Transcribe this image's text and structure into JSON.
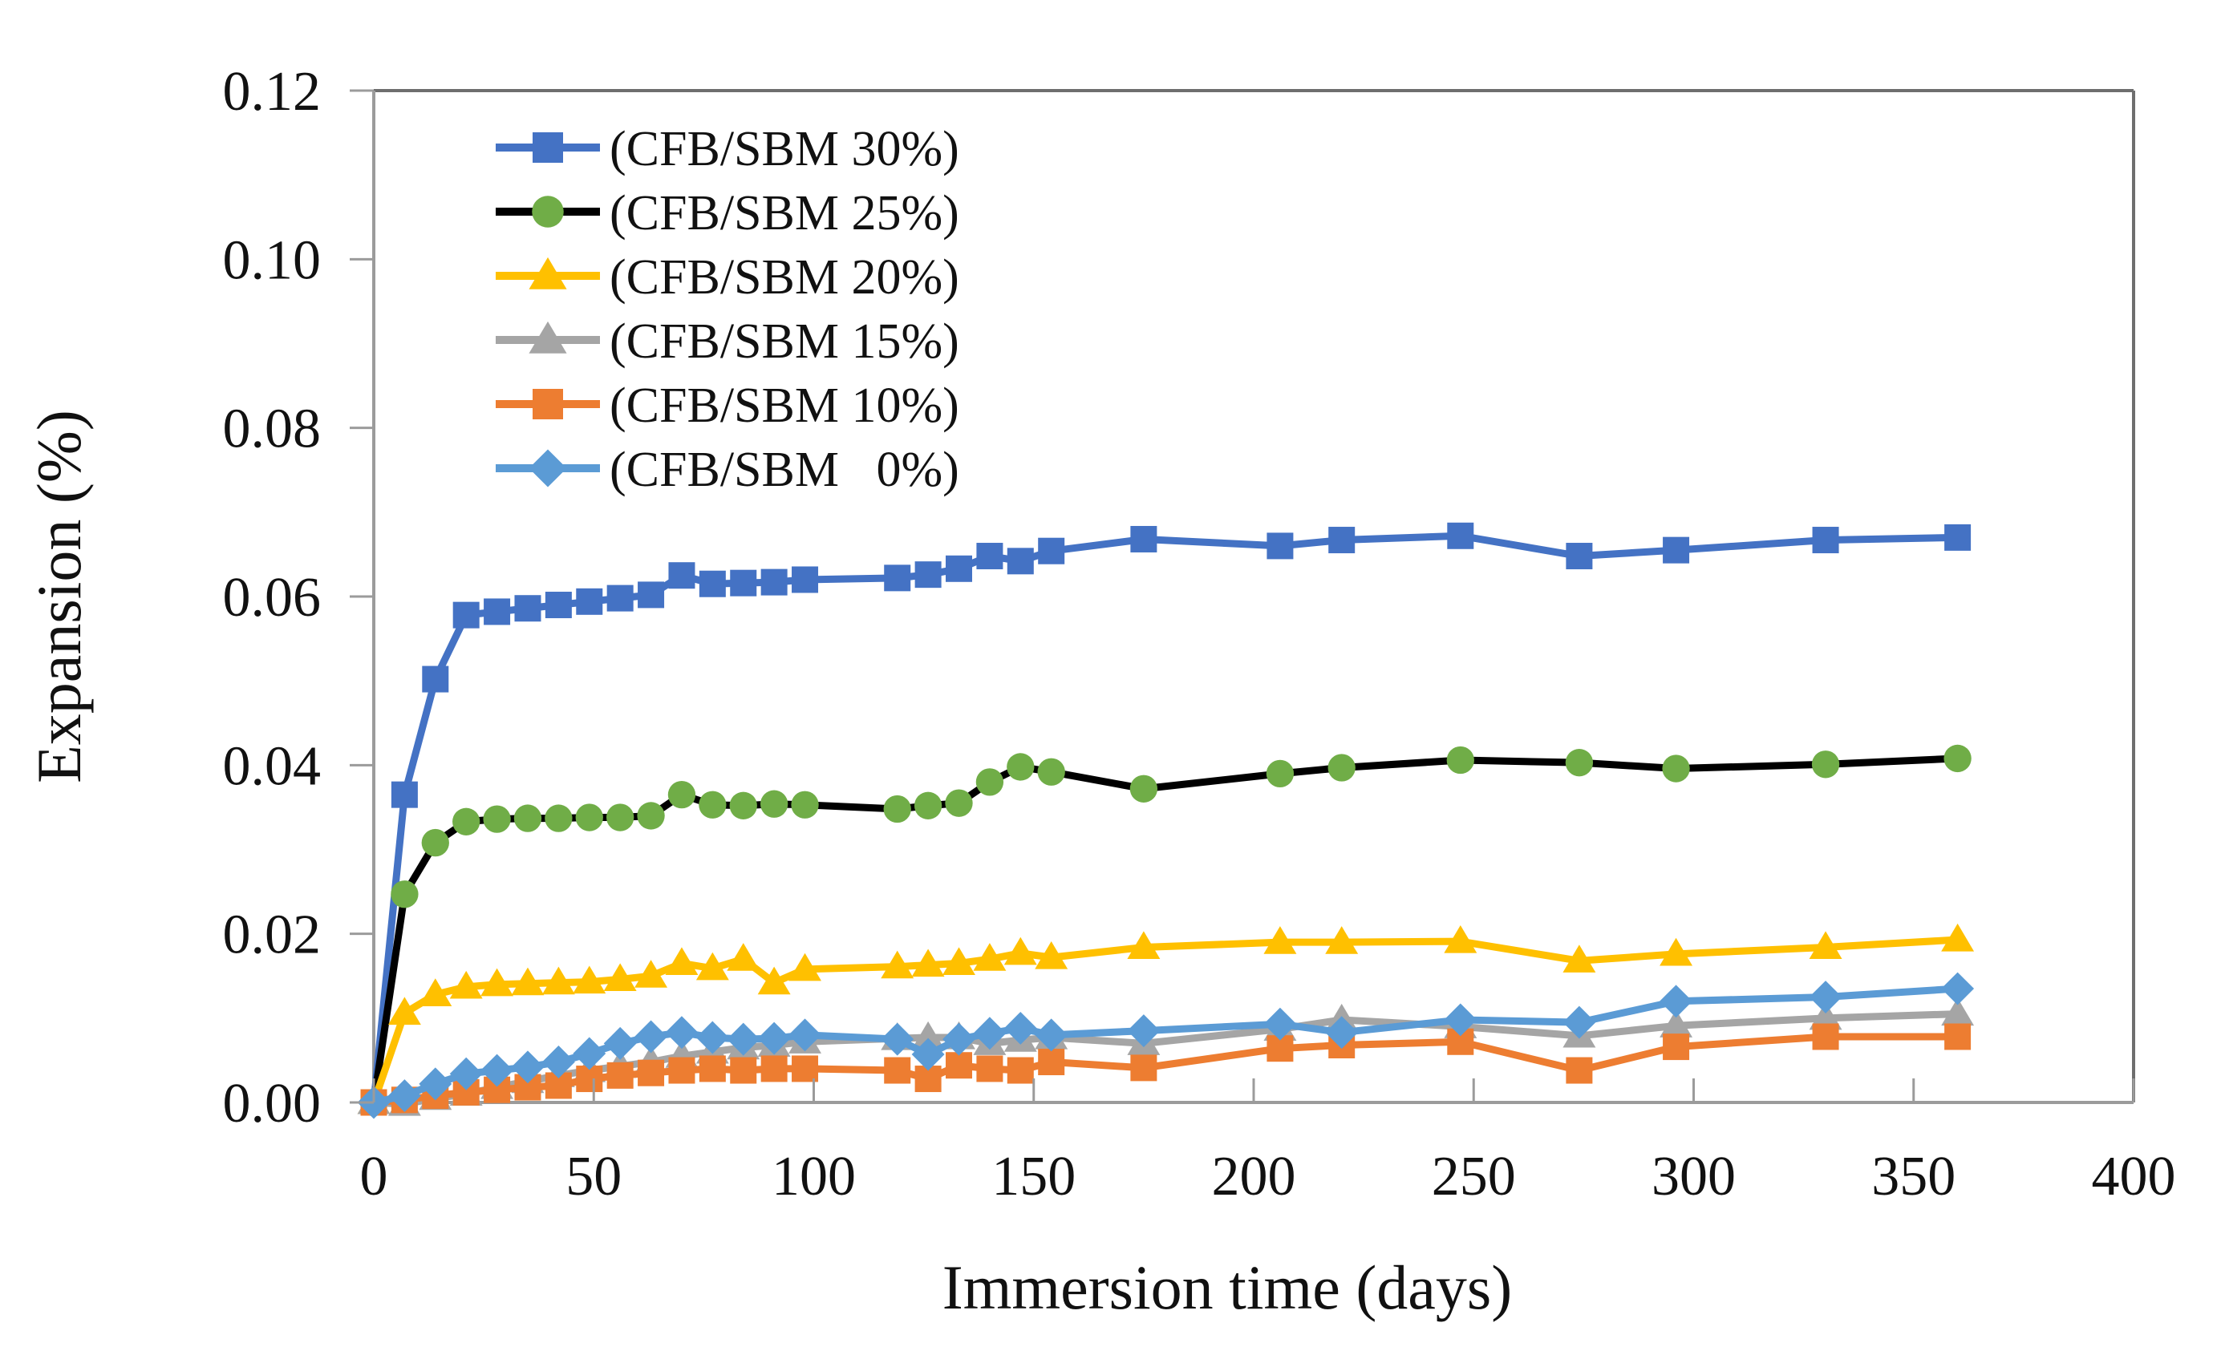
{
  "figure": {
    "background": "#ffffff",
    "frame_color_light": "#9b9b9b",
    "frame_color_dark": "#6e6e6e"
  },
  "chart_data": {
    "type": "line",
    "title": "",
    "xlabel": "Immersion time (days)",
    "ylabel": "Expansion  (%)",
    "xlim": [
      0,
      400
    ],
    "ylim": [
      0,
      0.12
    ],
    "x_ticks": [
      0,
      50,
      100,
      150,
      200,
      250,
      300,
      350,
      400
    ],
    "y_ticks": [
      {
        "value": 0.0,
        "label": "0.00"
      },
      {
        "value": 0.02,
        "label": "0.02"
      },
      {
        "value": 0.04,
        "label": "0.04"
      },
      {
        "value": 0.06,
        "label": "0.06"
      },
      {
        "value": 0.08,
        "label": "0.08"
      },
      {
        "value": 0.1,
        "label": "0.10"
      },
      {
        "value": 0.12,
        "label": "0.12"
      }
    ],
    "grid": false,
    "legend_position": "upper-left-inside",
    "x": [
      0,
      7,
      14,
      21,
      28,
      35,
      42,
      49,
      56,
      63,
      70,
      77,
      84,
      91,
      98,
      119,
      126,
      133,
      140,
      147,
      154,
      175,
      206,
      220,
      247,
      274,
      296,
      330,
      360
    ],
    "series": [
      {
        "name": "(CFB/SBM 30%)",
        "marker": "square",
        "marker_color": "#4472C4",
        "line_color": "#4472C4",
        "values": [
          0,
          0.0365,
          0.0502,
          0.0578,
          0.0582,
          0.0586,
          0.059,
          0.0594,
          0.0598,
          0.0602,
          0.0625,
          0.0615,
          0.0616,
          0.0617,
          0.062,
          0.0622,
          0.0626,
          0.0633,
          0.0648,
          0.0642,
          0.0654,
          0.0668,
          0.066,
          0.0667,
          0.0672,
          0.0648,
          0.0655,
          0.0667,
          0.067
        ]
      },
      {
        "name": "(CFB/SBM 25%)",
        "marker": "circle",
        "marker_color": "#70AD47",
        "line_color": "#000000",
        "values": [
          0,
          0.0247,
          0.0308,
          0.0333,
          0.0336,
          0.0337,
          0.0337,
          0.0338,
          0.0338,
          0.034,
          0.0365,
          0.0353,
          0.0352,
          0.0354,
          0.0353,
          0.0348,
          0.0352,
          0.0355,
          0.038,
          0.0398,
          0.0392,
          0.0372,
          0.039,
          0.0397,
          0.0406,
          0.0403,
          0.0396,
          0.0401,
          0.0408
        ]
      },
      {
        "name": "(CFB/SBM 20%)",
        "marker": "triangle",
        "marker_color": "#FFC000",
        "line_color": "#FFC000",
        "values": [
          0,
          0.0106,
          0.0128,
          0.0137,
          0.014,
          0.0141,
          0.0142,
          0.0143,
          0.0146,
          0.015,
          0.0165,
          0.0159,
          0.017,
          0.0142,
          0.0158,
          0.0161,
          0.0163,
          0.0165,
          0.017,
          0.0177,
          0.0172,
          0.0184,
          0.019,
          0.019,
          0.0191,
          0.0168,
          0.0176,
          0.0184,
          0.0193
        ]
      },
      {
        "name": "(CFB/SBM 15%)",
        "marker": "triangle",
        "marker_color": "#A5A5A5",
        "line_color": "#A5A5A5",
        "values": [
          0,
          -0.0002,
          0.0005,
          0.001,
          0.0018,
          0.0025,
          0.0032,
          0.0038,
          0.0043,
          0.0048,
          0.0055,
          0.006,
          0.0065,
          0.0068,
          0.0072,
          0.0076,
          0.0077,
          0.0077,
          0.007,
          0.0074,
          0.0077,
          0.007,
          0.0087,
          0.0098,
          0.009,
          0.0079,
          0.0091,
          0.01,
          0.0105
        ]
      },
      {
        "name": "(CFB/SBM 10%)",
        "marker": "square",
        "marker_color": "#ED7D31",
        "line_color": "#ED7D31",
        "values": [
          0,
          0.0003,
          0.0008,
          0.0012,
          0.0015,
          0.0018,
          0.002,
          0.0028,
          0.0032,
          0.0035,
          0.0038,
          0.004,
          0.0038,
          0.004,
          0.004,
          0.0038,
          0.0028,
          0.0044,
          0.004,
          0.0038,
          0.0048,
          0.0041,
          0.0064,
          0.0068,
          0.0072,
          0.0038,
          0.0066,
          0.0078,
          0.0078
        ]
      },
      {
        "name": "(CFB/SBM   0%)",
        "marker": "diamond",
        "marker_color": "#5B9BD5",
        "line_color": "#5B9BD5",
        "values": [
          0,
          0.0008,
          0.0022,
          0.0034,
          0.0038,
          0.0042,
          0.0048,
          0.0058,
          0.007,
          0.0078,
          0.0083,
          0.0077,
          0.0075,
          0.0076,
          0.008,
          0.0075,
          0.0057,
          0.0075,
          0.0082,
          0.0088,
          0.008,
          0.0085,
          0.0093,
          0.0083,
          0.0098,
          0.0095,
          0.012,
          0.0125,
          0.0135
        ]
      }
    ]
  }
}
